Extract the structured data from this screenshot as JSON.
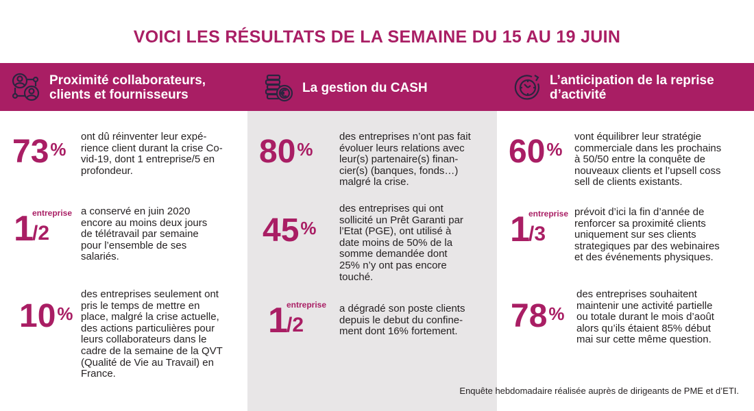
{
  "title": "VOICI LES RÉSULTATS DE LA SEMAINE DU 15 AU 19 JUIN",
  "colors": {
    "accent": "#a91e64",
    "column_bg": "#e8e6e7",
    "icon": "#2b2540"
  },
  "columns": [
    {
      "heading": "Proximité collaborateurs,\nclients et fournisseurs",
      "icon": "people-network-icon",
      "stats": [
        {
          "value": "73",
          "unit": "%",
          "text": "ont dû réinventer leur expé-\nrience client durant la crise Co-\nvid-19, dont 1 entreprise/5 en\nprofondeur."
        },
        {
          "numerator": "1",
          "label": "entreprise",
          "denominator": "/2",
          "text": "a conservé en juin 2020\nencore au moins deux jours\nde télétravail par semaine\npour l’ensemble de ses\nsalariés."
        },
        {
          "value": "10",
          "unit": "%",
          "text": "des entreprises seulement ont\npris le temps de mettre en\nplace, malgré la crise actuelle,\ndes actions particulières pour\nleurs collaborateurs dans le\ncadre de la semaine de la QVT\n(Qualité de Vie au Travail) en\nFrance."
        }
      ]
    },
    {
      "heading": "La gestion du CASH",
      "icon": "coins-euro-icon",
      "stats": [
        {
          "value": "80",
          "unit": "%",
          "text": "des entreprises n’ont pas fait\névoluer leurs relations avec\nleur(s) partenaire(s) finan-\ncier(s) (banques, fonds…)\nmalgré la crise."
        },
        {
          "value": "45",
          "unit": "%",
          "text": "des entreprises qui ont\nsollicité un Prêt Garanti par\nl’Etat (PGE), ont utilisé à\ndate moins de 50% de la\nsomme demandée dont\n25% n’y ont pas encore\ntouché."
        },
        {
          "numerator": "1",
          "label": "entreprise",
          "denominator": "/2",
          "text": "a dégradé son poste clients\ndepuis le debut du confine-\nment dont 16% fortement."
        }
      ]
    },
    {
      "heading": "L’anticipation de la reprise\nd’activité",
      "icon": "clock-refresh-icon",
      "stats": [
        {
          "value": "60",
          "unit": "%",
          "text": "vont équilibrer leur stratégie\ncommerciale dans les prochains\nà 50/50 entre la conquête de\nnouveaux clients et l’upsell coss\nsell de clients existants."
        },
        {
          "numerator": "1",
          "label": "entreprise",
          "denominator": "/3",
          "text": "prévoit d’ici la fin d’année de\nrenforcer sa proximité clients\nuniquement sur ses clients\nstrategiques par des webinaires\net des événements physiques."
        },
        {
          "value": "78",
          "unit": "%",
          "text": "des entreprises souhaitent\nmaintenir une activité partielle\nou totale durant le mois d’août\nalors qu’ils étaient 85% début\nmai sur cette même question."
        }
      ]
    }
  ],
  "footer": "Enquête hebdomadaire réalisée auprès de dirigeants de PME et d’ETI."
}
